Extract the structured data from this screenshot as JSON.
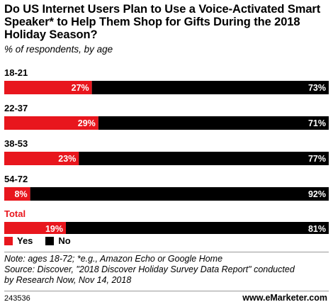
{
  "title": "Do US Internet Users Plan to Use a Voice-Activated Smart Speaker* to Help Them Shop for Gifts During the 2018 Holiday Season?",
  "subtitle": "% of respondents, by age",
  "chart_data": {
    "type": "bar",
    "orientation": "horizontal",
    "stacked": true,
    "categories": [
      "18-21",
      "22-37",
      "38-53",
      "54-72",
      "Total"
    ],
    "series": [
      {
        "name": "Yes",
        "values": [
          27,
          29,
          23,
          8,
          19
        ],
        "color": "#e8161d"
      },
      {
        "name": "No",
        "values": [
          73,
          71,
          77,
          92,
          81
        ],
        "color": "#000000"
      }
    ],
    "unit_suffix": "%",
    "xlim": [
      0,
      100
    ],
    "legend_position": "bottom-left",
    "grid": false,
    "category_colors": {
      "Total": "#e8161d",
      "default": "#000000"
    }
  },
  "legend": {
    "yes": "Yes",
    "no": "No"
  },
  "note": "Note: ages 18-72; *e.g., Amazon Echo or Google Home",
  "source_line1": "Source: Discover, \"2018 Discover Holiday Survey Data Report\" conducted",
  "source_line2": "by Research Now, Nov 14, 2018",
  "footer_id": "243536",
  "brand": "www.eMarketer.com"
}
